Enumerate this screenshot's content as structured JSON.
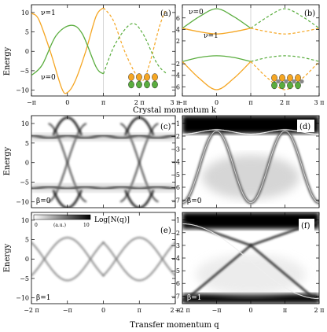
{
  "labels": {
    "energy": "Energy",
    "crystal_momentum": "Crystal momentum k",
    "transfer_momentum": "Transfer momentum q",
    "colorbar_title": "Log[N(q)]",
    "colorbar_min": "0",
    "colorbar_unit": "(a.u.)",
    "colorbar_max": "10",
    "nu1": "ν=1",
    "nu0": "ν=0",
    "beta0": "β=0",
    "beta1": "β=1"
  },
  "chart_data": [
    {
      "panel": "(a)",
      "type": "line",
      "xlabel": "Crystal momentum k",
      "ylabel": "Energy",
      "xlim": [
        -3.1416,
        9.4248
      ],
      "ylim": [
        -11.5,
        12
      ],
      "xticks": [
        "−π",
        "0",
        "π",
        "2 π",
        "3 π"
      ],
      "yticks": [
        -10,
        -5,
        0,
        5,
        10
      ],
      "vline_at": 3.1416,
      "series": [
        {
          "name": "ν=1",
          "color": "#f5a623",
          "points_solid": [
            [
              -3.1416,
              9.8
            ],
            [
              -2.5,
              8.2
            ],
            [
              -1.5,
              0
            ],
            [
              -0.5,
              -9.5
            ],
            [
              0,
              -10.6
            ],
            [
              0.7,
              -7.5
            ],
            [
              1.6,
              0
            ],
            [
              2.5,
              9
            ],
            [
              3.1416,
              11.2
            ]
          ],
          "points_dashed": [
            [
              3.1416,
              11.2
            ],
            [
              4,
              8
            ],
            [
              5,
              0
            ],
            [
              6,
              -6
            ],
            [
              6.6,
              -7.5
            ],
            [
              7.2,
              -3
            ],
            [
              8,
              6
            ],
            [
              8.6,
              10.8
            ]
          ]
        },
        {
          "name": "ν=0",
          "color": "#5aad3e",
          "points_solid": [
            [
              -3.1416,
              -6.2
            ],
            [
              -2.2,
              -3.5
            ],
            [
              -1,
              4
            ],
            [
              0.3,
              6.7
            ],
            [
              1.3,
              4.5
            ],
            [
              2.5,
              -4
            ],
            [
              3.1416,
              -5.8
            ]
          ],
          "points_dashed": [
            [
              3.1416,
              -5.8
            ],
            [
              4.2,
              2
            ],
            [
              5.6,
              7.1
            ],
            [
              6.6,
              4.5
            ],
            [
              7.8,
              -3
            ],
            [
              8.6,
              -5.6
            ]
          ]
        }
      ]
    },
    {
      "panel": "(b)",
      "type": "line",
      "xlim": [
        -3.1416,
        9.4248
      ],
      "ylim": [
        -7.6,
        8.3
      ],
      "xticks": [
        "−π",
        "0",
        "π",
        "2 π",
        "3 π"
      ],
      "yticks": [
        -6,
        -4,
        -2,
        2,
        4,
        6
      ],
      "vline_at": 3.1416,
      "series": [
        {
          "name": "upper green",
          "color": "#5aad3e",
          "points_solid": [
            [
              -3.1416,
              4.2
            ],
            [
              -1.6,
              6.2
            ],
            [
              0,
              7.6
            ],
            [
              1.6,
              6.2
            ],
            [
              3.1416,
              4.2
            ]
          ],
          "points_dashed": [
            [
              3.1416,
              4.2
            ],
            [
              4.7,
              6.2
            ],
            [
              6.2832,
              7.6
            ],
            [
              7.9,
              6.2
            ],
            [
              9.4248,
              4.2
            ]
          ]
        },
        {
          "name": "ν=1",
          "color": "#f5a623",
          "points_solid": [
            [
              -3.1416,
              4.2
            ],
            [
              -1.6,
              3.6
            ],
            [
              0,
              3.2
            ],
            [
              1.6,
              3.6
            ],
            [
              3.1416,
              4.2
            ]
          ],
          "points_dashed": [
            [
              3.1416,
              4.2
            ],
            [
              4.7,
              3.6
            ],
            [
              6.2832,
              3.2
            ],
            [
              7.9,
              3.6
            ],
            [
              9.4248,
              4.2
            ]
          ]
        },
        {
          "name": "lower green",
          "color": "#5aad3e",
          "points_solid": [
            [
              -3.1416,
              -1.6
            ],
            [
              -1.6,
              -0.9
            ],
            [
              0,
              -0.6
            ],
            [
              1.6,
              -0.9
            ],
            [
              3.1416,
              -1.6
            ]
          ],
          "points_dashed": [
            [
              3.1416,
              -1.6
            ],
            [
              4.7,
              -0.9
            ],
            [
              6.2832,
              -0.6
            ],
            [
              7.9,
              -0.9
            ],
            [
              9.4248,
              -1.6
            ]
          ]
        },
        {
          "name": "lower orange",
          "color": "#f5a623",
          "points_solid": [
            [
              -3.1416,
              -1.6
            ],
            [
              -1.6,
              -4.5
            ],
            [
              0,
              -6.5
            ],
            [
              1.6,
              -4.5
            ],
            [
              3.1416,
              -1.6
            ]
          ],
          "points_dashed": [
            [
              3.1416,
              -1.6
            ],
            [
              4.7,
              -4.5
            ],
            [
              6.2832,
              -6.5
            ],
            [
              7.9,
              -4.5
            ],
            [
              9.4248,
              -1.6
            ]
          ]
        }
      ]
    },
    {
      "panel": "(c)",
      "type": "heatmap",
      "ylim": [
        -11.5,
        12
      ],
      "yticks": [
        -10,
        -5,
        0,
        5,
        10
      ],
      "beta": "β=0"
    },
    {
      "panel": "(d)",
      "type": "heatmap",
      "ylim": [
        -7.6,
        -0.4
      ],
      "yticks": [
        -7,
        -6,
        -5,
        -4,
        -3,
        -2,
        -1
      ],
      "beta": "β=0"
    },
    {
      "panel": "(e)",
      "type": "heatmap",
      "ylim": [
        -11.5,
        12
      ],
      "yticks": [
        -10,
        -5,
        0,
        5,
        10
      ],
      "xticks": [
        "−2 π",
        "−π",
        "0",
        "π",
        "2 π"
      ],
      "beta": "β=1",
      "colorbar": {
        "min": 0,
        "max": 10,
        "unit": "(a.u.)",
        "title": "Log[N(q)]"
      }
    },
    {
      "panel": "(f)",
      "type": "heatmap",
      "ylim": [
        -7.6,
        -0.4
      ],
      "yticks": [
        -7,
        -6,
        -5,
        -4,
        -3,
        -2,
        -1
      ],
      "xticks": [
        "−2 π",
        "−π",
        "0",
        "π",
        "2 π"
      ],
      "beta": "β=1"
    }
  ]
}
